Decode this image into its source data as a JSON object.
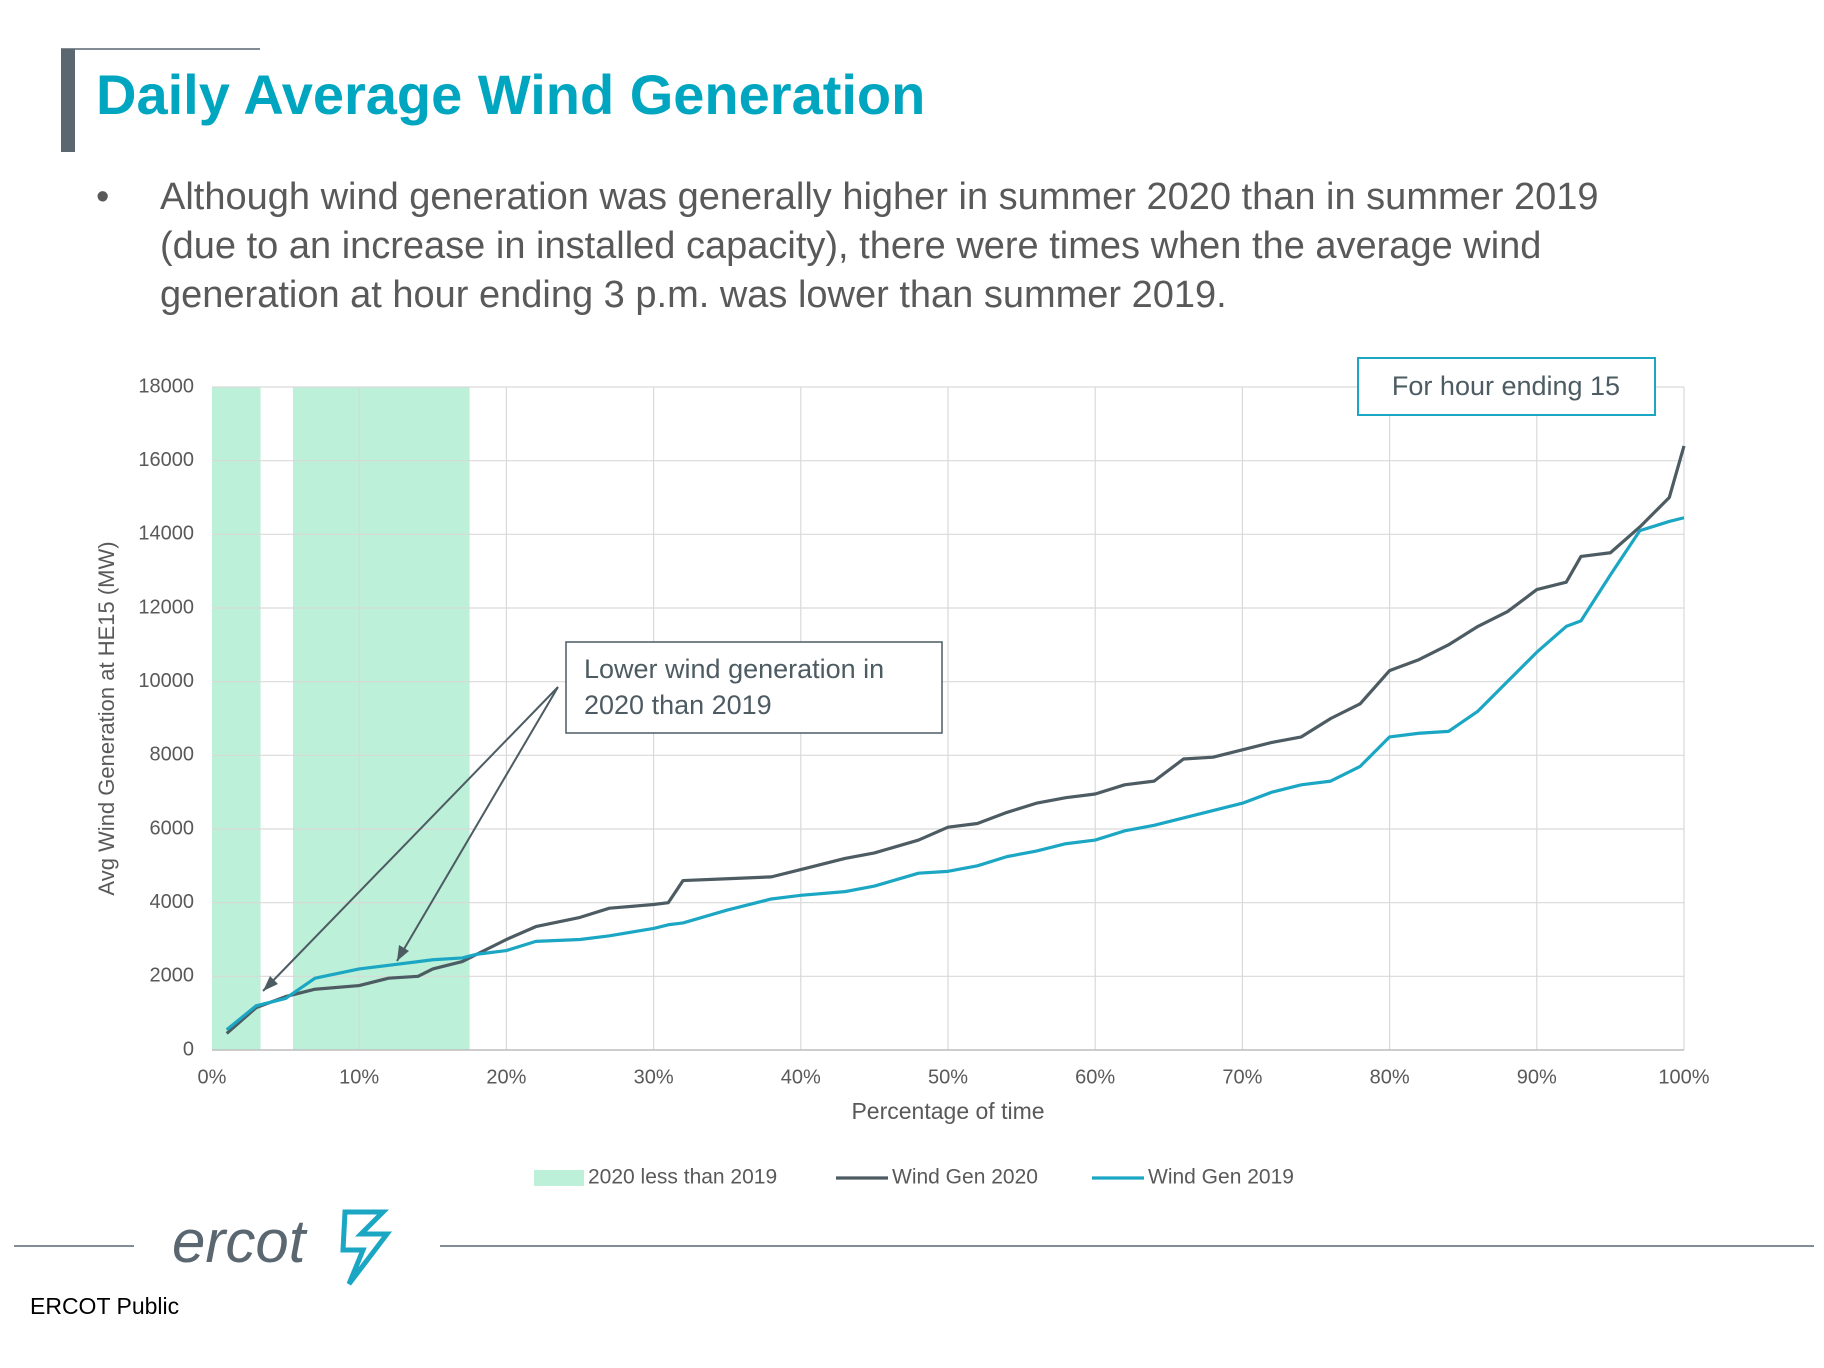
{
  "header": {
    "title": "Daily Average Wind Generation"
  },
  "bullet": {
    "lines": [
      "Although wind generation was generally higher in summer 2020 than in summer 2019",
      "(due to an increase in installed capacity), there were times when the average wind",
      "generation at hour ending 3 p.m. was lower than summer 2019."
    ]
  },
  "chart_data": {
    "type": "line",
    "x_label": "Percentage of time",
    "y_label": "Avg Wind Generation at HE15 (MW)",
    "x": [
      1,
      3,
      5,
      7,
      10,
      12,
      14,
      15,
      17,
      18,
      20,
      22,
      25,
      27,
      30,
      31,
      32,
      35,
      38,
      40,
      43,
      45,
      48,
      50,
      52,
      54,
      56,
      58,
      60,
      62,
      64,
      66,
      68,
      70,
      72,
      74,
      76,
      78,
      80,
      82,
      84,
      86,
      88,
      90,
      92,
      93,
      95,
      97,
      99,
      100
    ],
    "series": [
      {
        "name": "Wind Gen 2020",
        "color": "#4d5b63",
        "values": [
          450,
          1150,
          1450,
          1650,
          1750,
          1950,
          2000,
          2200,
          2400,
          2600,
          3000,
          3350,
          3600,
          3850,
          3950,
          4000,
          4600,
          4650,
          4700,
          4900,
          5200,
          5350,
          5700,
          6050,
          6150,
          6450,
          6700,
          6850,
          6950,
          7200,
          7300,
          7900,
          7950,
          8150,
          8350,
          8500,
          9000,
          9400,
          10300,
          10600,
          11000,
          11500,
          11900,
          12500,
          12700,
          13400,
          13500,
          14200,
          15000,
          16400
        ]
      },
      {
        "name": "Wind Gen 2019",
        "color": "#1ba7c4",
        "values": [
          550,
          1200,
          1400,
          1950,
          2200,
          2300,
          2400,
          2450,
          2500,
          2600,
          2700,
          2950,
          3000,
          3100,
          3300,
          3400,
          3450,
          3800,
          4100,
          4200,
          4300,
          4450,
          4800,
          4850,
          5000,
          5250,
          5400,
          5600,
          5700,
          5950,
          6100,
          6300,
          6500,
          6700,
          7000,
          7200,
          7300,
          7700,
          8500,
          8600,
          8650,
          9200,
          10000,
          10800,
          11500,
          11650,
          12900,
          14100,
          14350,
          14450
        ]
      }
    ],
    "shaded": {
      "name": "2020 less than 2019",
      "color": "#bdf0d8",
      "ranges": [
        [
          0,
          3.3
        ],
        [
          5.5,
          17.5
        ]
      ]
    },
    "xlim": [
      0,
      100
    ],
    "xticks": [
      {
        "value": 0,
        "label": "0%"
      },
      {
        "value": 10,
        "label": "10%"
      },
      {
        "value": 20,
        "label": "20%"
      },
      {
        "value": 30,
        "label": "30%"
      },
      {
        "value": 40,
        "label": "40%"
      },
      {
        "value": 50,
        "label": "50%"
      },
      {
        "value": 60,
        "label": "60%"
      },
      {
        "value": 70,
        "label": "70%"
      },
      {
        "value": 80,
        "label": "80%"
      },
      {
        "value": 90,
        "label": "90%"
      },
      {
        "value": 100,
        "label": "100%"
      }
    ],
    "ylim": [
      0,
      18000
    ],
    "yticks": [
      0,
      2000,
      4000,
      6000,
      8000,
      10000,
      12000,
      14000,
      16000,
      18000
    ],
    "grid": true,
    "annotations": {
      "callout": [
        "Lower wind generation in",
        "2020 than 2019"
      ],
      "box": "For hour ending 15"
    }
  },
  "footer": {
    "logo": "ercot",
    "label": "ERCOT Public"
  }
}
